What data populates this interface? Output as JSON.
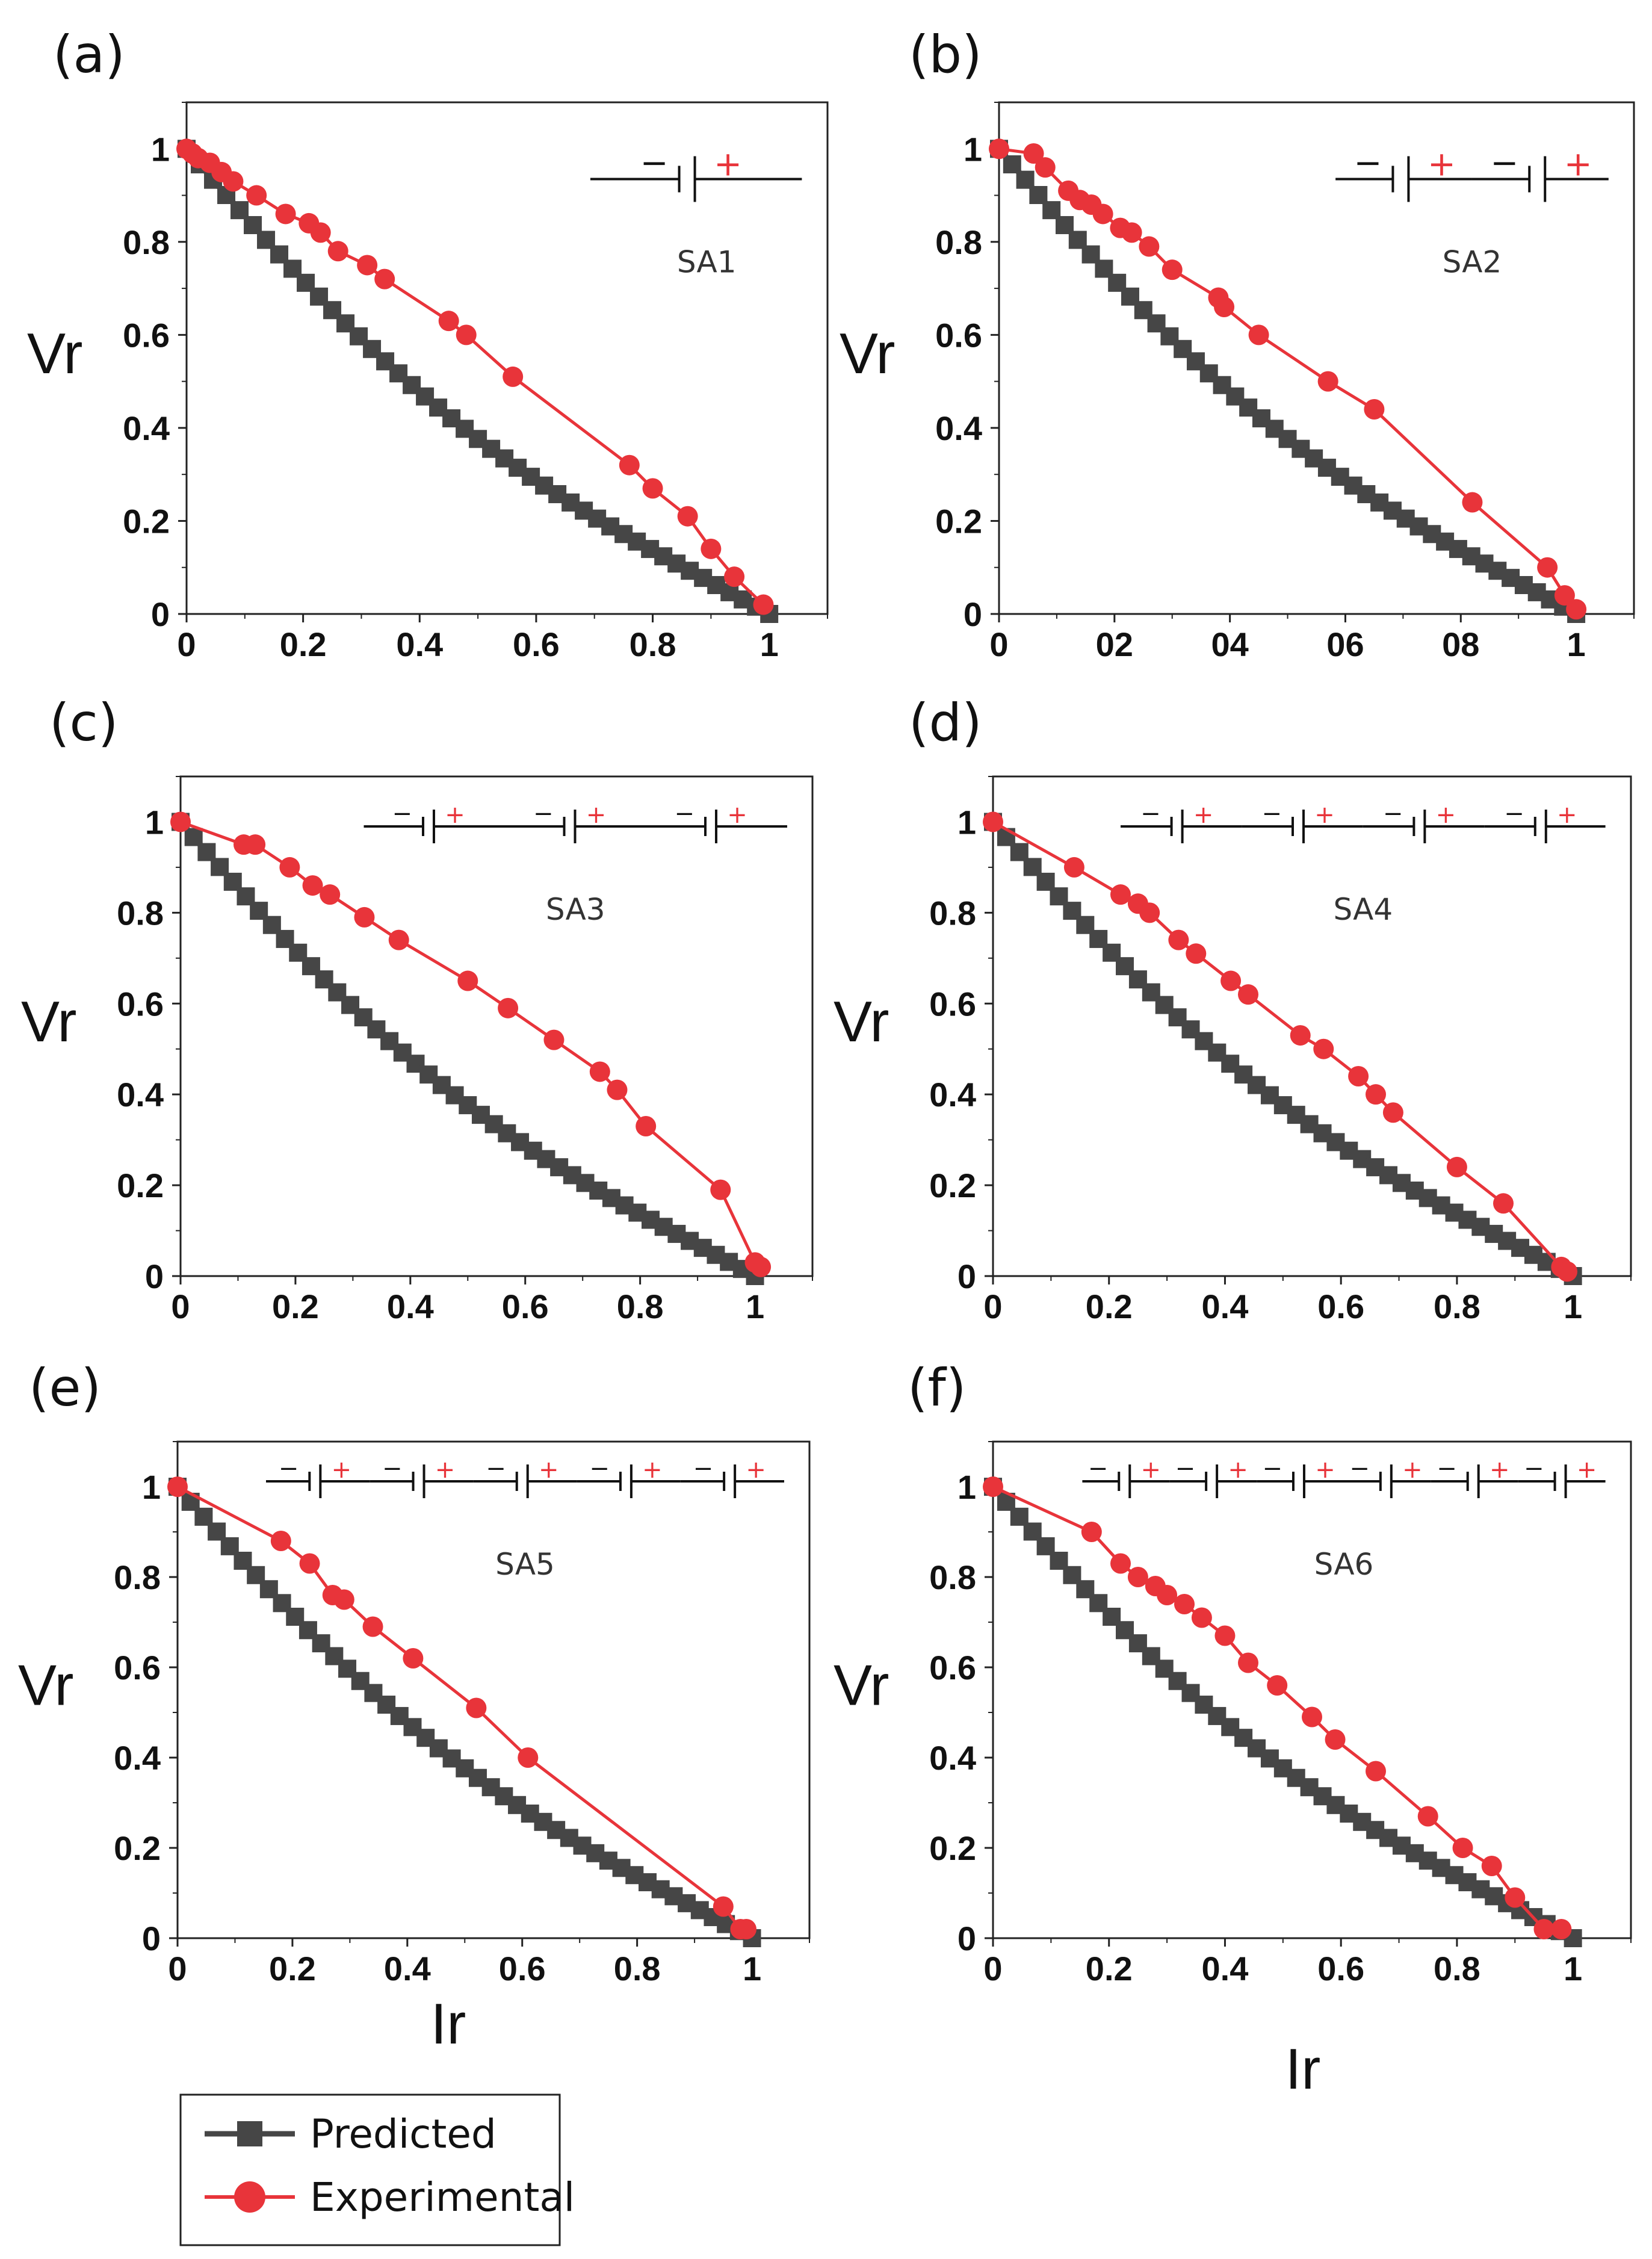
{
  "colors": {
    "predicted": "#464646",
    "experimental": "#e8343a",
    "frame": "#222222",
    "cell": "#111111",
    "plus": "#e8343a"
  },
  "legend": {
    "predicted": "Predicted",
    "experimental": "Experimental"
  },
  "chart_data": [
    {
      "panel": "(a)",
      "label": "SA1",
      "cells": 1,
      "type": "line",
      "xlabel": "",
      "ylabel": "Vr",
      "xlim": [
        0,
        1.1
      ],
      "ylim": [
        0,
        1.1
      ],
      "xticks": [
        "0",
        "0.2",
        "0.4",
        "0.6",
        "0.8",
        "1"
      ],
      "yticks": [
        "0",
        "0.2",
        "0.4",
        "0.6",
        "0.8",
        "1"
      ],
      "series": [
        {
          "name": "Predicted",
          "curve": "predicted"
        },
        {
          "name": "Experimental",
          "x": [
            0,
            0.01,
            0.02,
            0.04,
            0.06,
            0.08,
            0.12,
            0.17,
            0.21,
            0.23,
            0.26,
            0.31,
            0.34,
            0.45,
            0.48,
            0.56,
            0.76,
            0.8,
            0.86,
            0.9,
            0.94,
            0.99
          ],
          "y": [
            1,
            0.99,
            0.98,
            0.97,
            0.95,
            0.93,
            0.9,
            0.86,
            0.84,
            0.82,
            0.78,
            0.75,
            0.72,
            0.63,
            0.6,
            0.51,
            0.32,
            0.27,
            0.21,
            0.14,
            0.08,
            0.02
          ]
        }
      ]
    },
    {
      "panel": "(b)",
      "label": "SA2",
      "cells": 2,
      "type": "line",
      "xlabel": "",
      "ylabel": "Vr",
      "xlim": [
        0,
        1.1
      ],
      "ylim": [
        0,
        1.1
      ],
      "xticks": [
        "0",
        "02",
        "04",
        "06",
        "08",
        "1"
      ],
      "yticks": [
        "0",
        "0.2",
        "0.4",
        "0.6",
        "0.8",
        "1"
      ],
      "series": [
        {
          "name": "Predicted",
          "curve": "predicted"
        },
        {
          "name": "Experimental",
          "x": [
            0,
            0.06,
            0.08,
            0.12,
            0.14,
            0.16,
            0.18,
            0.21,
            0.23,
            0.26,
            0.3,
            0.38,
            0.39,
            0.45,
            0.57,
            0.65,
            0.82,
            0.95,
            0.98,
            1.0
          ],
          "y": [
            1,
            0.99,
            0.96,
            0.91,
            0.89,
            0.88,
            0.86,
            0.83,
            0.82,
            0.79,
            0.74,
            0.68,
            0.66,
            0.6,
            0.5,
            0.44,
            0.24,
            0.1,
            0.04,
            0.01
          ]
        }
      ]
    },
    {
      "panel": "(c)",
      "label": "SA3",
      "cells": 3,
      "type": "line",
      "xlabel": "",
      "ylabel": "Vr",
      "xlim": [
        0,
        1.1
      ],
      "ylim": [
        0,
        1.1
      ],
      "xticks": [
        "0",
        "0.2",
        "0.4",
        "0.6",
        "0.8",
        "1"
      ],
      "yticks": [
        "0",
        "0.2",
        "0.4",
        "0.6",
        "0.8",
        "1"
      ],
      "series": [
        {
          "name": "Predicted",
          "curve": "predicted"
        },
        {
          "name": "Experimental",
          "x": [
            0,
            0.11,
            0.13,
            0.19,
            0.23,
            0.26,
            0.32,
            0.38,
            0.5,
            0.57,
            0.65,
            0.73,
            0.76,
            0.81,
            0.94,
            1.0,
            1.01
          ],
          "y": [
            1,
            0.95,
            0.95,
            0.9,
            0.86,
            0.84,
            0.79,
            0.74,
            0.65,
            0.59,
            0.52,
            0.45,
            0.41,
            0.33,
            0.19,
            0.03,
            0.02
          ]
        }
      ]
    },
    {
      "panel": "(d)",
      "label": "SA4",
      "cells": 4,
      "type": "line",
      "xlabel": "",
      "ylabel": "Vr",
      "xlim": [
        0,
        1.1
      ],
      "ylim": [
        0,
        1.1
      ],
      "xticks": [
        "0",
        "0.2",
        "0.4",
        "0.6",
        "0.8",
        "1"
      ],
      "yticks": [
        "0",
        "0.2",
        "0.4",
        "0.6",
        "0.8",
        "1"
      ],
      "series": [
        {
          "name": "Predicted",
          "curve": "predicted"
        },
        {
          "name": "Experimental",
          "x": [
            0,
            0.14,
            0.22,
            0.25,
            0.27,
            0.32,
            0.35,
            0.41,
            0.44,
            0.53,
            0.57,
            0.63,
            0.66,
            0.69,
            0.8,
            0.88,
            0.98,
            0.99
          ],
          "y": [
            1,
            0.9,
            0.84,
            0.82,
            0.8,
            0.74,
            0.71,
            0.65,
            0.62,
            0.53,
            0.5,
            0.44,
            0.4,
            0.36,
            0.24,
            0.16,
            0.02,
            0.01
          ]
        }
      ]
    },
    {
      "panel": "(e)",
      "label": "SA5",
      "cells": 5,
      "type": "line",
      "xlabel": "Ir",
      "ylabel": "Vr",
      "xlim": [
        0,
        1.1
      ],
      "ylim": [
        0,
        1.1
      ],
      "xticks": [
        "0",
        "0.2",
        "0.4",
        "0.6",
        "0.8",
        "1"
      ],
      "yticks": [
        "0",
        "0.2",
        "0.4",
        "0.6",
        "0.8",
        "1"
      ],
      "series": [
        {
          "name": "Predicted",
          "curve": "predicted"
        },
        {
          "name": "Experimental",
          "x": [
            0,
            0.18,
            0.23,
            0.27,
            0.29,
            0.34,
            0.41,
            0.52,
            0.61,
            0.95,
            0.98,
            0.99
          ],
          "y": [
            1,
            0.88,
            0.83,
            0.76,
            0.75,
            0.69,
            0.62,
            0.51,
            0.4,
            0.07,
            0.02,
            0.02
          ]
        }
      ]
    },
    {
      "panel": "(f)",
      "label": "SA6",
      "cells": 6,
      "type": "line",
      "xlabel": "Ir",
      "ylabel": "Vr",
      "xlim": [
        0,
        1.1
      ],
      "ylim": [
        0,
        1.1
      ],
      "xticks": [
        "0",
        "0.2",
        "0.4",
        "0.6",
        "0.8",
        "1"
      ],
      "yticks": [
        "0",
        "0.2",
        "0.4",
        "0.6",
        "0.8",
        "1"
      ],
      "series": [
        {
          "name": "Predicted",
          "curve": "predicted"
        },
        {
          "name": "Experimental",
          "x": [
            0,
            0.17,
            0.22,
            0.25,
            0.28,
            0.3,
            0.33,
            0.36,
            0.4,
            0.44,
            0.49,
            0.55,
            0.59,
            0.66,
            0.75,
            0.81,
            0.86,
            0.9,
            0.95,
            0.98
          ],
          "y": [
            1,
            0.9,
            0.83,
            0.8,
            0.78,
            0.76,
            0.74,
            0.71,
            0.67,
            0.61,
            0.56,
            0.49,
            0.44,
            0.37,
            0.27,
            0.2,
            0.16,
            0.09,
            0.02,
            0.02
          ]
        }
      ]
    }
  ]
}
